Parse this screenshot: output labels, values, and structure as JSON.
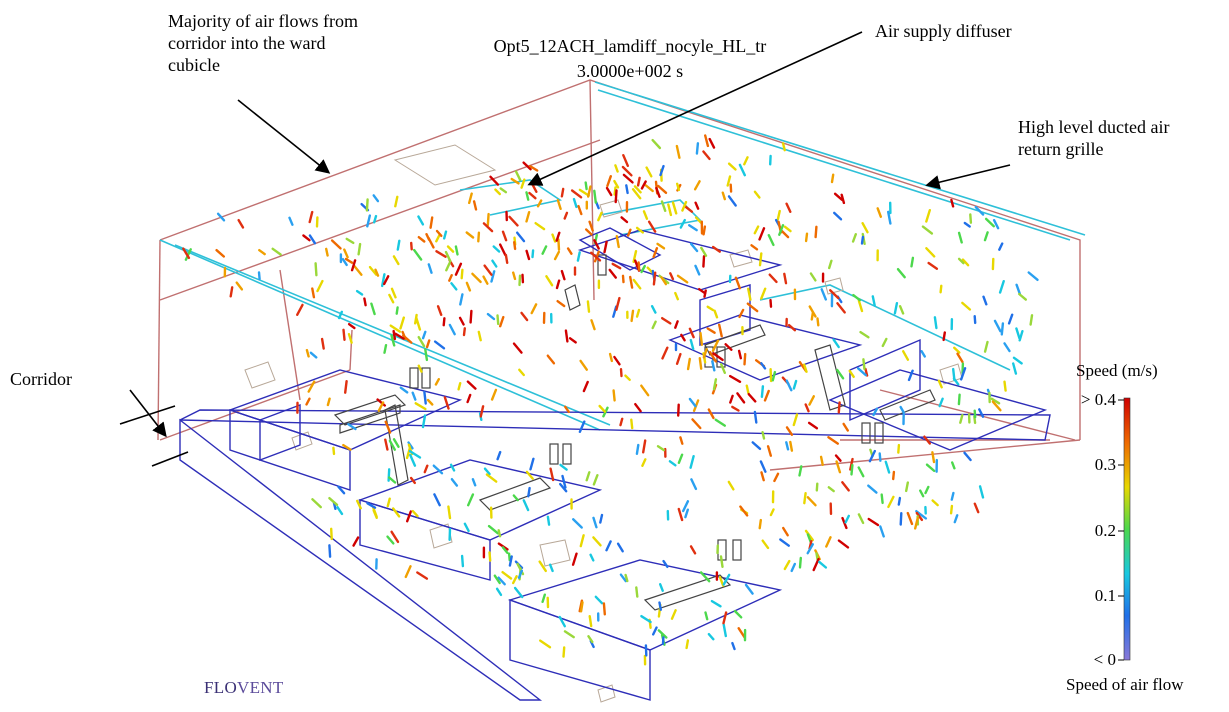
{
  "title": {
    "line1": "Opt5_12ACH_lamdiff_nocyle_HL_tr",
    "line2": "3.0000e+002 s"
  },
  "annotations": {
    "majority_flow": "Majority of air flows from\ncorridor into the ward\ncubicle",
    "supply_diffuser": "Air supply diffuser",
    "return_grille": "High level ducted air\nreturn grille",
    "corridor": "Corridor"
  },
  "legend": {
    "title": "Speed (m/s)",
    "caption": "Speed of air flow",
    "ticks": [
      "> 0.4",
      "0.3",
      "0.2",
      "0.1",
      "< 0"
    ],
    "colors": [
      "#d00000",
      "#ee6a00",
      "#e8d800",
      "#4cd84c",
      "#18c8e0",
      "#2070e8",
      "#8a78d8"
    ]
  },
  "software": {
    "part1": "FLO",
    "part2": "VENT"
  },
  "colors": {
    "room_outline": "#c07070",
    "furniture": "#2e2eb8",
    "ceiling_ducts": "#2ec0d8",
    "beds": "#444444"
  }
}
